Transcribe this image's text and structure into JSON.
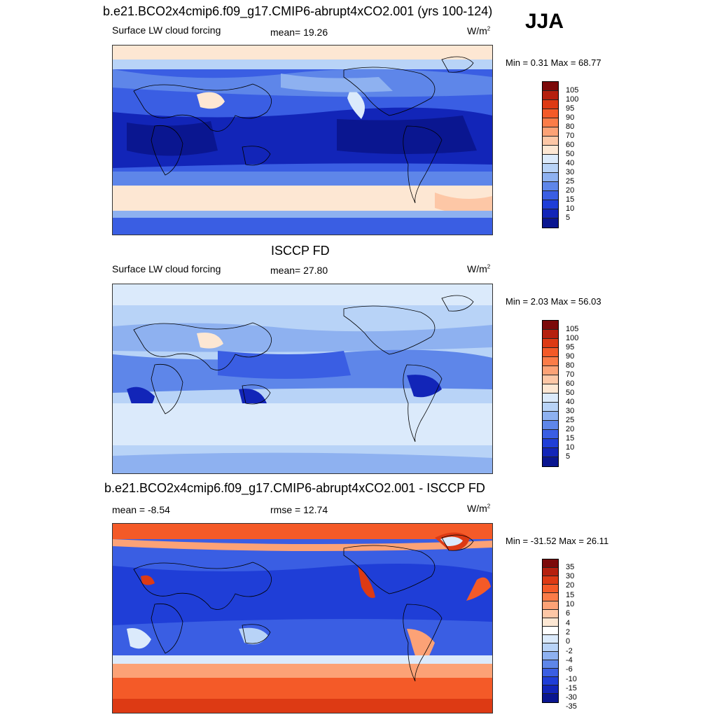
{
  "season": "JJA",
  "panels": [
    {
      "title": "b.e21.BCO2x4cmip6.f09_g17.CMIP6-abrupt4xCO2.001 (yrs 100-124)",
      "left_label": "Surface LW cloud forcing",
      "center_label": "mean=  19.26",
      "units": "W/m",
      "units_exp": "2",
      "minmax": "Min =   0.31 Max =  68.77",
      "ticks": [
        "105",
        "100",
        "95",
        "90",
        "80",
        "70",
        "60",
        "50",
        "40",
        "30",
        "25",
        "20",
        "15",
        "10",
        "5"
      ],
      "colors": [
        "#7c0a0a",
        "#b5200e",
        "#dd3a14",
        "#f45a28",
        "#fb7c48",
        "#fca276",
        "#fdc7a6",
        "#fde7d3",
        "#dbeafb",
        "#b8d3f7",
        "#8eb1f0",
        "#5e86e9",
        "#3a5ee3",
        "#1f3ed7",
        "#1225b8",
        "#0a1690"
      ]
    },
    {
      "title": "ISCCP FD",
      "left_label": "Surface LW cloud forcing",
      "center_label": "mean=  27.80",
      "units": "W/m",
      "units_exp": "2",
      "minmax": "Min =   2.03 Max =  56.03",
      "ticks": [
        "105",
        "100",
        "95",
        "90",
        "80",
        "70",
        "60",
        "50",
        "40",
        "30",
        "25",
        "20",
        "15",
        "10",
        "5"
      ],
      "colors": [
        "#7c0a0a",
        "#b5200e",
        "#dd3a14",
        "#f45a28",
        "#fb7c48",
        "#fca276",
        "#fdc7a6",
        "#fde7d3",
        "#dbeafb",
        "#b8d3f7",
        "#8eb1f0",
        "#5e86e9",
        "#3a5ee3",
        "#1f3ed7",
        "#1225b8",
        "#0a1690"
      ]
    },
    {
      "title": "b.e21.BCO2x4cmip6.f09_g17.CMIP6-abrupt4xCO2.001 - ISCCP FD",
      "left_label": "mean =  -8.54",
      "center_label": "rmse =  12.74",
      "units": "W/m",
      "units_exp": "2",
      "minmax": "Min = -31.52 Max =  26.11",
      "ticks": [
        "35",
        "30",
        "20",
        "15",
        "10",
        "6",
        "4",
        "2",
        "0",
        "-2",
        "-4",
        "-6",
        "-10",
        "-15",
        "-30",
        "-35"
      ],
      "colors": [
        "#7c0a0a",
        "#b5200e",
        "#dd3a14",
        "#f45a28",
        "#fb7c48",
        "#fca276",
        "#fdc7a6",
        "#fde7d3",
        "#ffffff",
        "#dbeafb",
        "#b8d3f7",
        "#8eb1f0",
        "#5e86e9",
        "#3a5ee3",
        "#1f3ed7",
        "#1225b8",
        "#0a1690"
      ]
    }
  ]
}
